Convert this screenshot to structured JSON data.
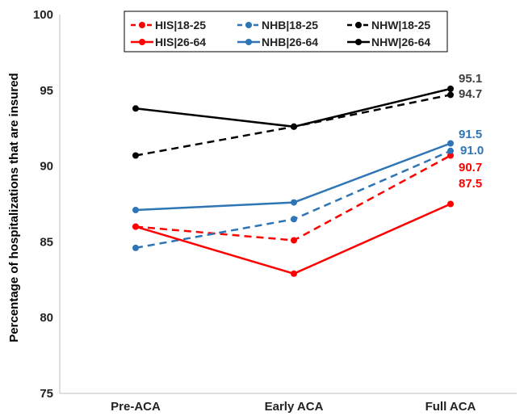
{
  "chart_data": {
    "type": "line",
    "title": "",
    "xlabel": "",
    "ylabel": "Percentage of hospitalizations that are insured",
    "categories": [
      "Pre-ACA",
      "Early ACA",
      "Full ACA"
    ],
    "ylim": [
      75,
      100
    ],
    "yticks": [
      75,
      80,
      85,
      90,
      95,
      100
    ],
    "grid": false,
    "legend_position": "top",
    "series": [
      {
        "name": "HIS|18-25",
        "color": "#ff0000",
        "dashed": true,
        "values": [
          86.0,
          85.1,
          90.7
        ],
        "end_label": "90.7"
      },
      {
        "name": "NHB|18-25",
        "color": "#2e75b6",
        "dashed": true,
        "values": [
          84.6,
          86.5,
          91.0
        ],
        "end_label": "91.0"
      },
      {
        "name": "NHW|18-25",
        "color": "#000000",
        "dashed": true,
        "values": [
          90.7,
          92.6,
          94.7
        ],
        "end_label": "94.7"
      },
      {
        "name": "HIS|26-64",
        "color": "#ff0000",
        "dashed": false,
        "values": [
          86.0,
          82.9,
          87.5
        ],
        "end_label": "87.5"
      },
      {
        "name": "NHB|26-64",
        "color": "#2e75b6",
        "dashed": false,
        "values": [
          87.1,
          87.6,
          91.5
        ],
        "end_label": "91.5"
      },
      {
        "name": "NHW|26-64",
        "color": "#000000",
        "dashed": false,
        "values": [
          93.8,
          92.6,
          95.1
        ],
        "end_label": "95.1"
      }
    ]
  }
}
